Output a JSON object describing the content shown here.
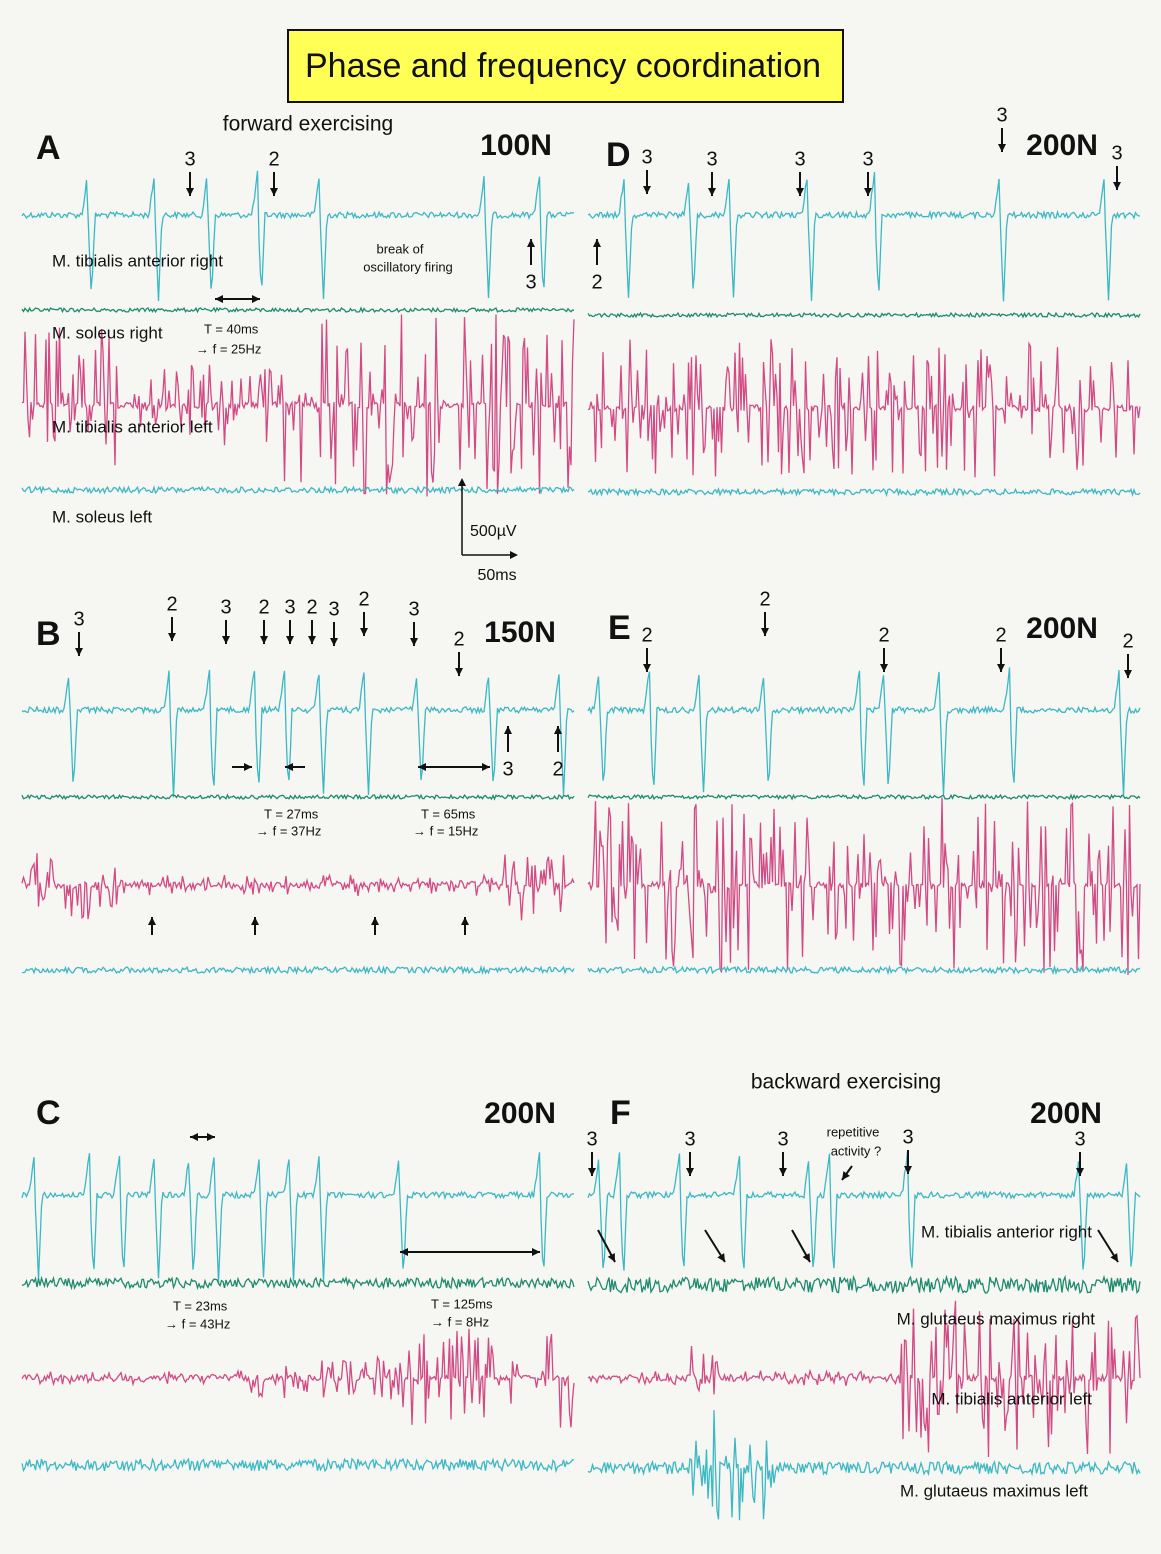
{
  "title": "Phase and frequency coordination",
  "A": {
    "letter": "A",
    "heading": "forward exercising",
    "force": "100N",
    "markers": [
      "3",
      "2",
      "3"
    ],
    "break_note": [
      "break of",
      "oscillatory firing"
    ],
    "muscles": [
      "M. tibialis anterior right",
      "M. soleus right",
      "M. tibialis anterior left",
      "M. soleus left"
    ],
    "period": "T = 40ms",
    "frequency": "→ f = 25Hz",
    "scale_amplitude": "500µV",
    "scale_time": "50ms"
  },
  "D": {
    "letter": "D",
    "force": "200N",
    "markers": [
      "3",
      "3",
      "3",
      "3",
      "3",
      "3",
      "2"
    ]
  },
  "B": {
    "letter": "B",
    "force": "150N",
    "markers": [
      "3",
      "2",
      "3",
      "2",
      "3",
      "2",
      "3",
      "2",
      "3",
      "2",
      "3",
      "2"
    ],
    "periods": [
      {
        "period": "T = 27ms",
        "frequency": "→ f = 37Hz"
      },
      {
        "period": "T = 65ms",
        "frequency": "→ f = 15Hz"
      }
    ]
  },
  "E": {
    "letter": "E",
    "force": "200N",
    "markers": [
      "2",
      "2",
      "2",
      "2",
      "2"
    ]
  },
  "C": {
    "letter": "C",
    "force": "200N",
    "periods": [
      {
        "period": "T = 23ms",
        "frequency": "→ f = 43Hz"
      },
      {
        "period": "T = 125ms",
        "frequency": "→ f = 8Hz"
      }
    ]
  },
  "F": {
    "letter": "F",
    "heading": "backward exercising",
    "force": "200N",
    "markers": [
      "3",
      "3",
      "3",
      "3",
      "3"
    ],
    "note": [
      "repetitive",
      "activity ?"
    ],
    "muscles": [
      "M. tibialis anterior right",
      "M. glutaeus maximus right",
      "M. tibialis anterior left",
      "M. glutaeus maximus left"
    ]
  }
}
